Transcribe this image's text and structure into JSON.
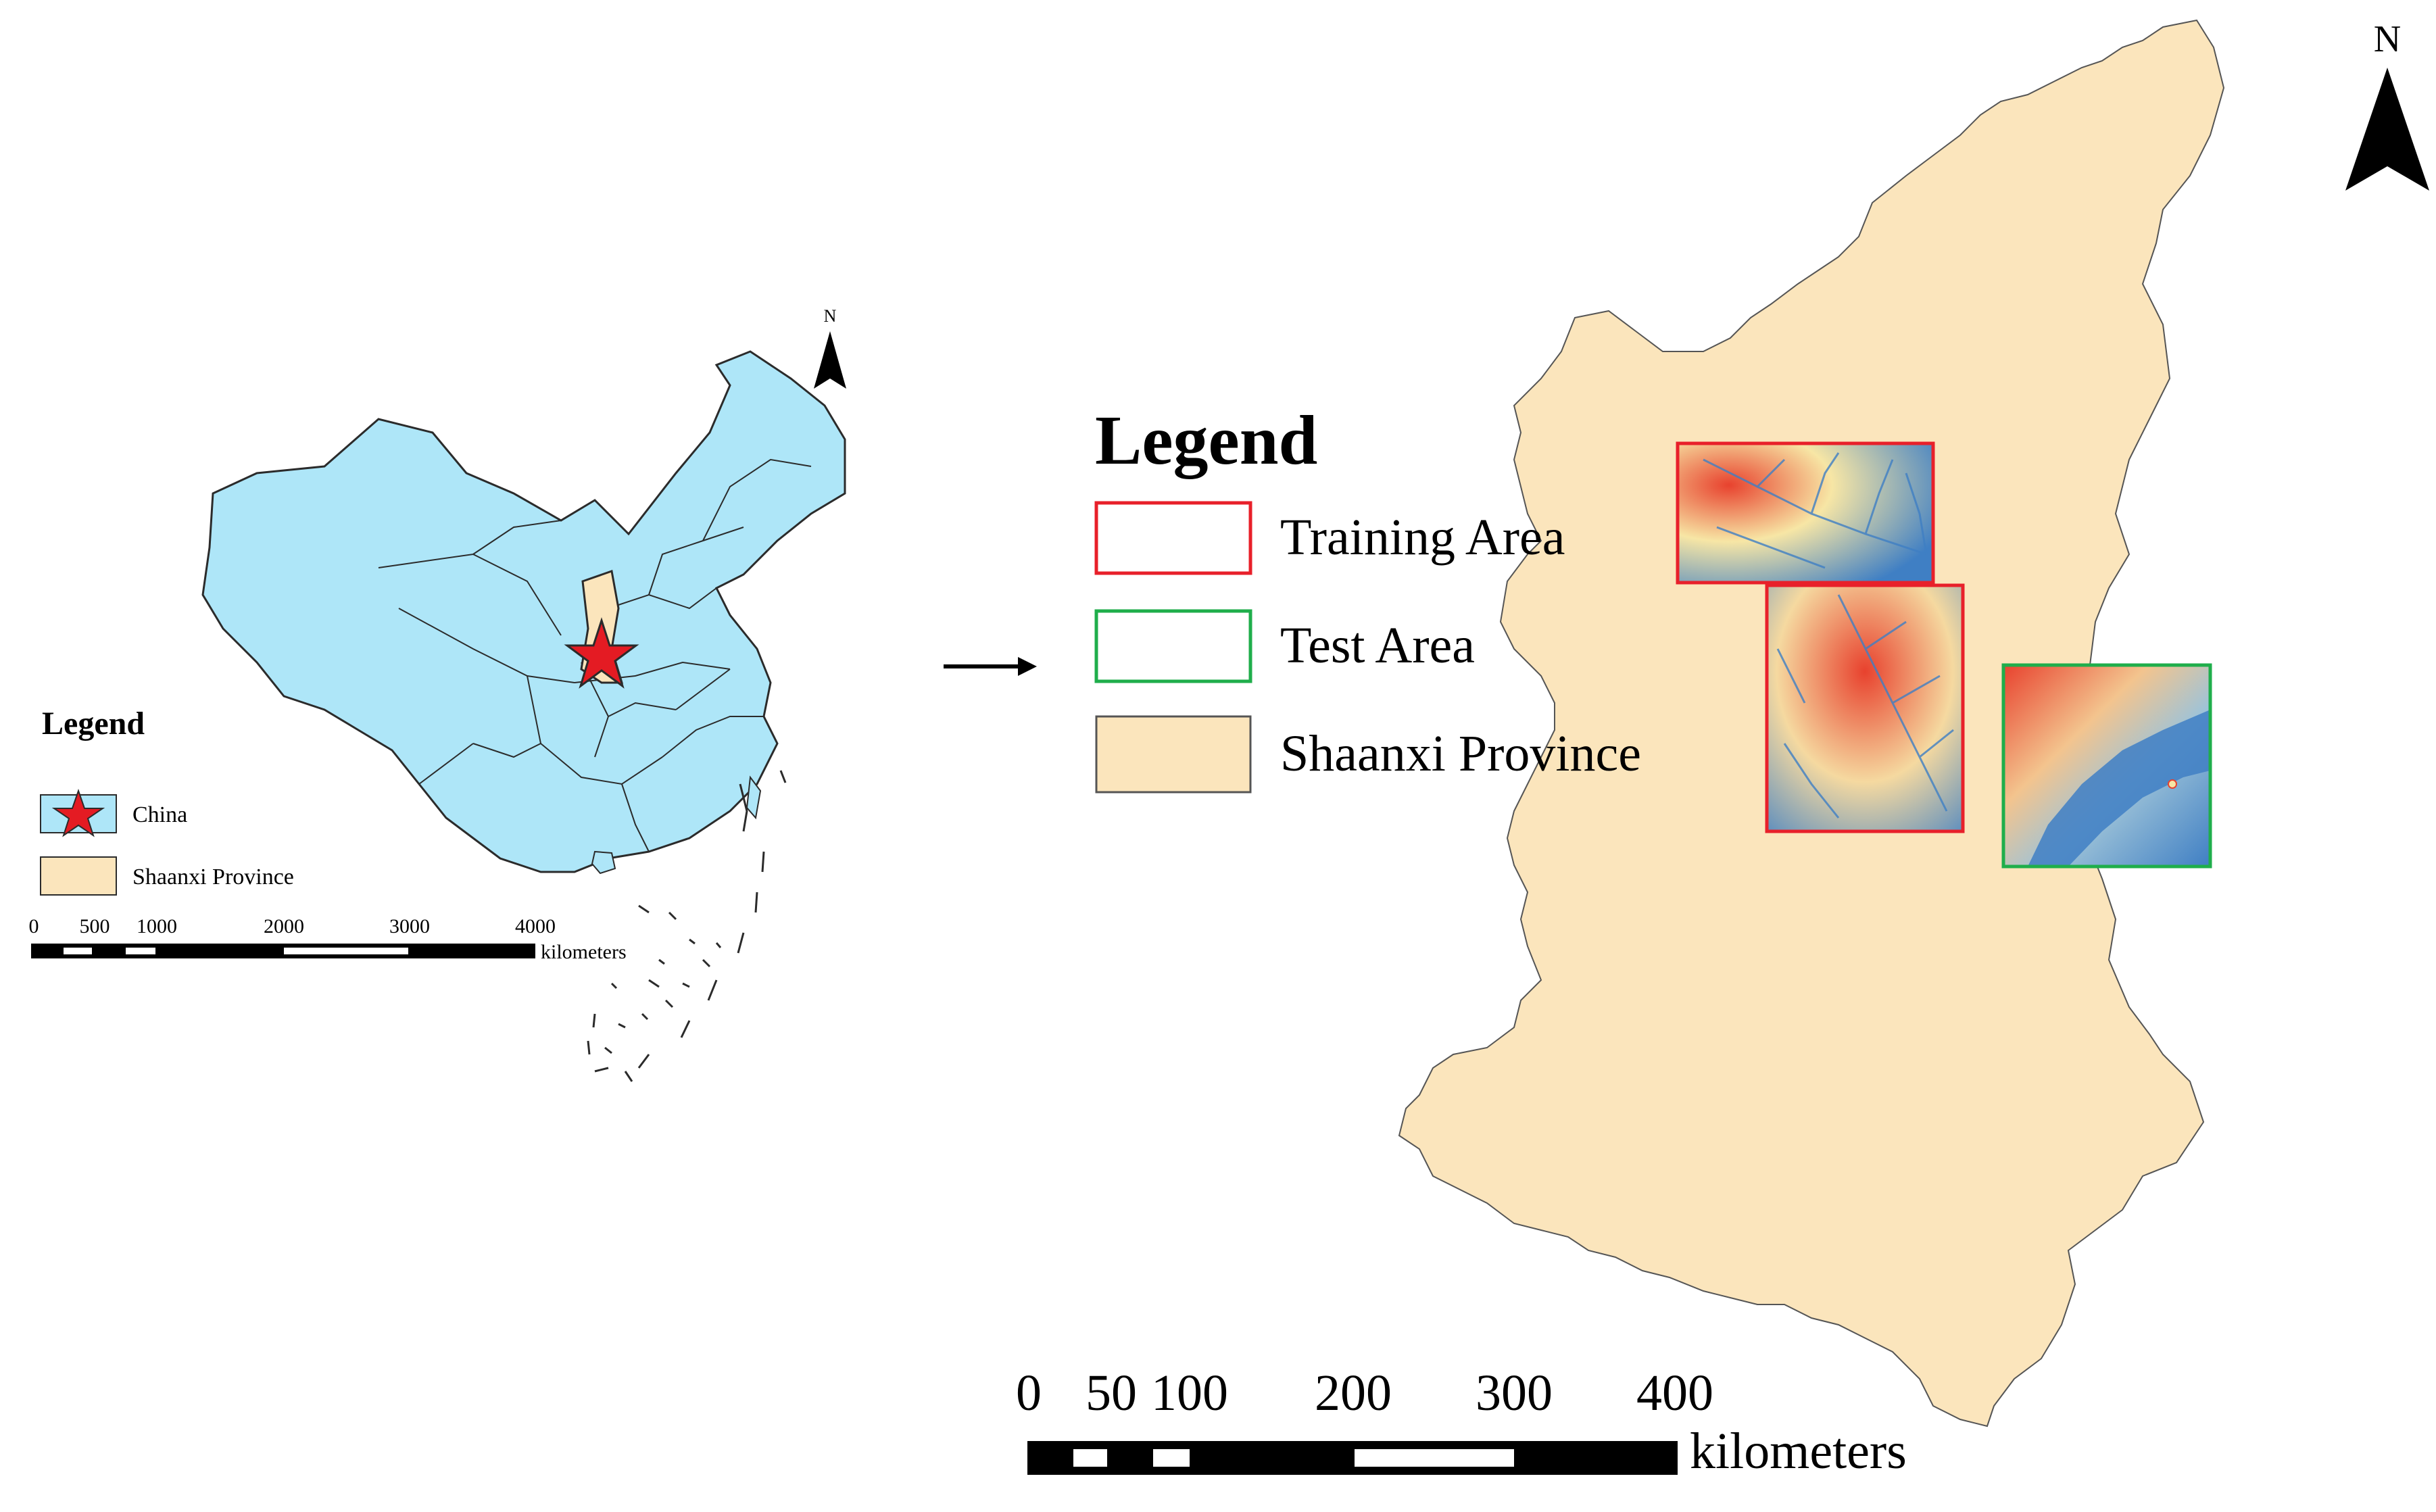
{
  "china_map": {
    "north_label": "N",
    "legend": {
      "title": "Legend",
      "items": [
        "China",
        "Shaanxi Province"
      ]
    },
    "scale_bar": {
      "ticks": [
        "0",
        "500",
        "1000",
        "2000",
        "3000",
        "4000"
      ],
      "unit": "kilometers"
    }
  },
  "main_legend": {
    "title": "Legend",
    "items": [
      "Training Area",
      "Test Area",
      "Shaanxi Province"
    ]
  },
  "shaanxi_map": {
    "north_label": "N",
    "scale_bar": {
      "ticks": [
        "0",
        "50",
        "100",
        "200",
        "300",
        "400"
      ],
      "unit": "kilometers"
    }
  },
  "colors": {
    "china_fill": "#aee6f8",
    "shaanxi_fill": "#fbe5bc",
    "training_outline": "#e8202a",
    "test_outline": "#1fae4b",
    "star": "#e41b23",
    "dem_high": "#e8422e",
    "dem_mid": "#f7e6a5",
    "dem_low": "#3f7fc4"
  },
  "icons": [
    "north-arrow-icon",
    "star-icon",
    "right-arrow-icon"
  ]
}
